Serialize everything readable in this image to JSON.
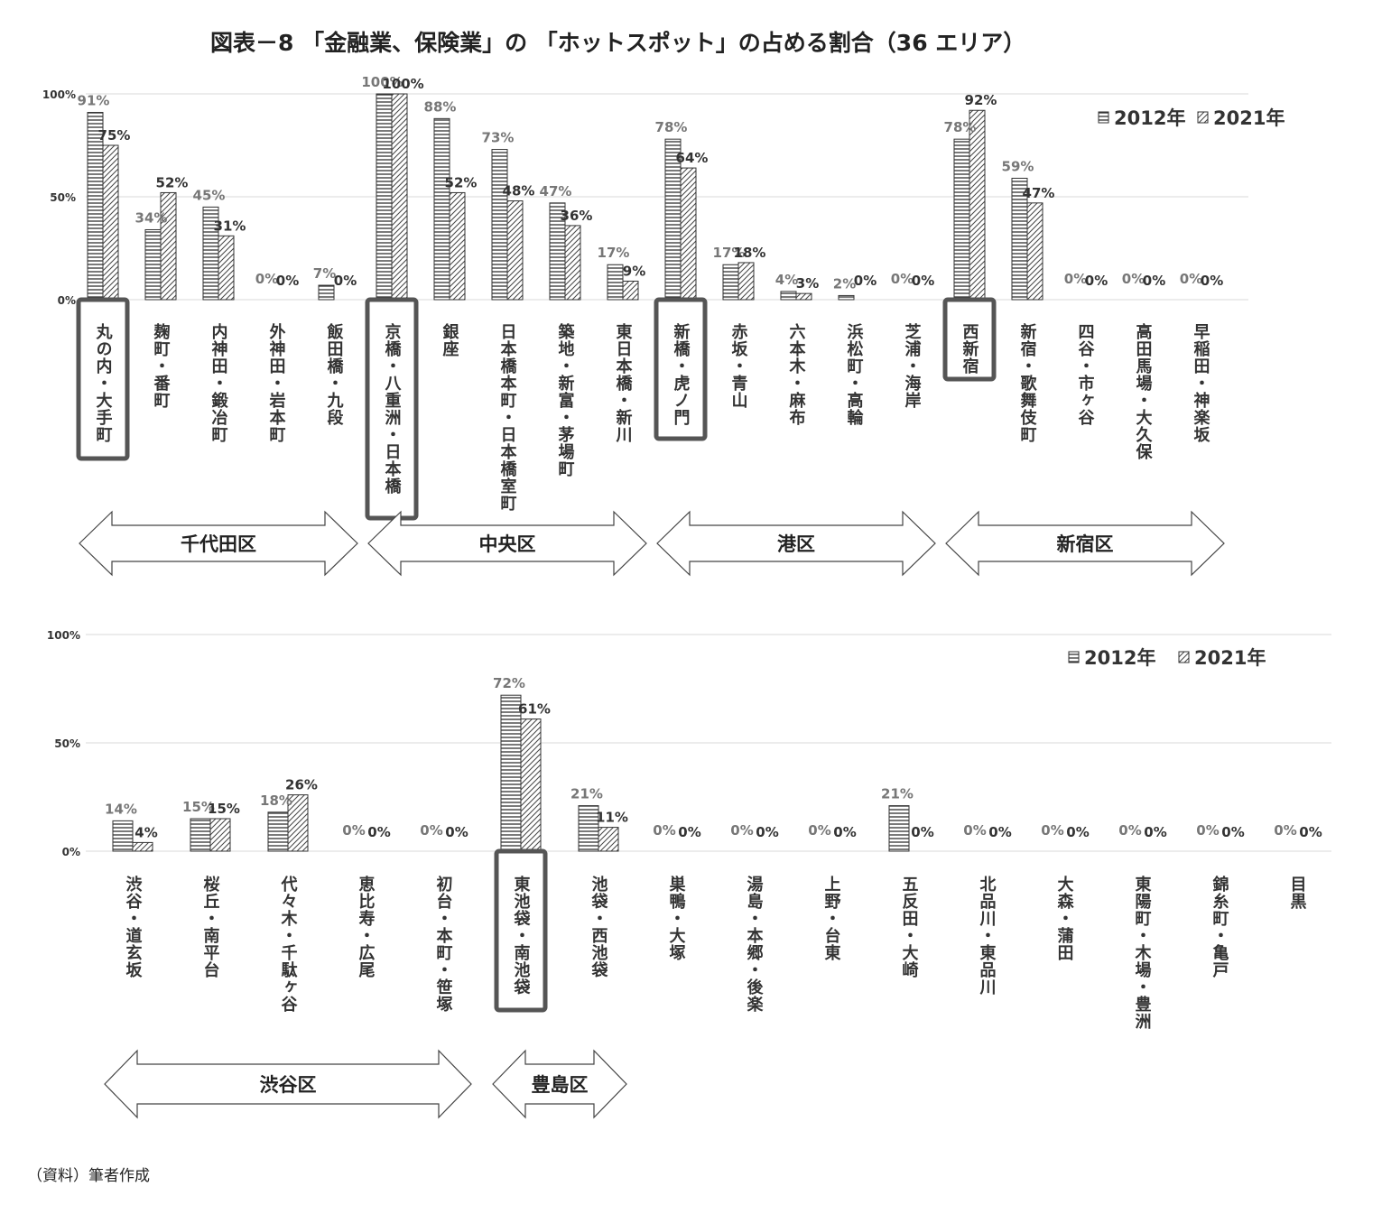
{
  "title": "図表－8 「金融業、保険業」の 「ホットスポット」の占める割合（36 エリア）",
  "source": "（資料）筆者作成",
  "colors": {
    "bar_border": "#333333",
    "grid": "#d9d9d9",
    "highlight": "#555555",
    "arrow": "#444444"
  },
  "chart_data": [
    {
      "type": "bar",
      "panel": "top",
      "series": [
        {
          "name": "2012年",
          "values": [
            91,
            34,
            45,
            0,
            7,
            100,
            88,
            73,
            47,
            17,
            78,
            17,
            4,
            2,
            0,
            78,
            59,
            0,
            0,
            0
          ],
          "labels": [
            "91%",
            "34%",
            "45%",
            "0%",
            "7%",
            "100%",
            "88%",
            "73%",
            "47%",
            "17%",
            "78%",
            "17%",
            "4%",
            "2%",
            "0%",
            "78%",
            "59%",
            "0%",
            "0%",
            "0%"
          ]
        },
        {
          "name": "2021年",
          "values": [
            75,
            52,
            31,
            0,
            0,
            100,
            52,
            48,
            36,
            9,
            64,
            18,
            3,
            0,
            0,
            92,
            47,
            0,
            0,
            0
          ],
          "labels": [
            "75%",
            "52%",
            "31%",
            "0%",
            "0%",
            "100%",
            "52%",
            "48%",
            "36%",
            "9%",
            "64%",
            "18%",
            "3%",
            "0%",
            "0%",
            "92%",
            "47%",
            "0%",
            "0%",
            "0%"
          ]
        }
      ],
      "categories": [
        "丸の内・大手町",
        "麹町・番町",
        "内神田・鍛冶町",
        "外神田・岩本町",
        "飯田橋・九段",
        "京橋・八重洲・日本橋",
        "銀座",
        "日本橋本町・日本橋室町",
        "築地・新富・茅場町",
        "東日本橋・新川",
        "新橋・虎ノ門",
        "赤坂・青山",
        "六本木・麻布",
        "浜松町・高輪",
        "芝浦・海岸",
        "西新宿",
        "新宿・歌舞伎町",
        "四谷・市ヶ谷",
        "高田馬場・大久保",
        "早稲田・神楽坂"
      ],
      "highlighted": [
        0,
        5,
        10,
        15
      ],
      "ylim": [
        0,
        100
      ],
      "yticks": [
        "0%",
        "50%",
        "100%"
      ],
      "legend": [
        "2012年",
        "2021年"
      ],
      "wards": [
        {
          "name": "千代田区",
          "from": 0,
          "to": 4
        },
        {
          "name": "中央区",
          "from": 5,
          "to": 9
        },
        {
          "name": "港区",
          "from": 10,
          "to": 14
        },
        {
          "name": "新宿区",
          "from": 15,
          "to": 19
        }
      ]
    },
    {
      "type": "bar",
      "panel": "bottom",
      "series": [
        {
          "name": "2012年",
          "values": [
            14,
            15,
            18,
            0,
            0,
            72,
            21,
            0,
            0,
            0,
            21,
            0,
            0,
            0,
            0,
            0
          ],
          "labels": [
            "14%",
            "15%",
            "18%",
            "0%",
            "0%",
            "72%",
            "21%",
            "0%",
            "0%",
            "0%",
            "21%",
            "0%",
            "0%",
            "0%",
            "0%",
            "0%"
          ]
        },
        {
          "name": "2021年",
          "values": [
            4,
            15,
            26,
            0,
            0,
            61,
            11,
            0,
            0,
            0,
            0,
            0,
            0,
            0,
            0,
            0
          ],
          "labels": [
            "4%",
            "15%",
            "26%",
            "0%",
            "0%",
            "61%",
            "11%",
            "0%",
            "0%",
            "0%",
            "0%",
            "0%",
            "0%",
            "0%",
            "0%",
            "0%"
          ]
        }
      ],
      "categories": [
        "渋谷・道玄坂",
        "桜丘・南平台",
        "代々木・千駄ヶ谷",
        "恵比寿・広尾",
        "初台・本町・笹塚",
        "東池袋・南池袋",
        "池袋・西池袋",
        "巣鴨・大塚",
        "湯島・本郷・後楽",
        "上野・台東",
        "五反田・大崎",
        "北品川・東品川",
        "大森・蒲田",
        "東陽町・木場・豊洲",
        "錦糸町・亀戸",
        "目黒"
      ],
      "highlighted": [
        5
      ],
      "ylim": [
        0,
        100
      ],
      "yticks": [
        "0%",
        "50%",
        "100%"
      ],
      "legend": [
        "2012年",
        "2021年"
      ],
      "wards": [
        {
          "name": "渋谷区",
          "from": 0,
          "to": 4
        },
        {
          "name": "豊島区",
          "from": 5,
          "to": 6
        }
      ]
    }
  ]
}
